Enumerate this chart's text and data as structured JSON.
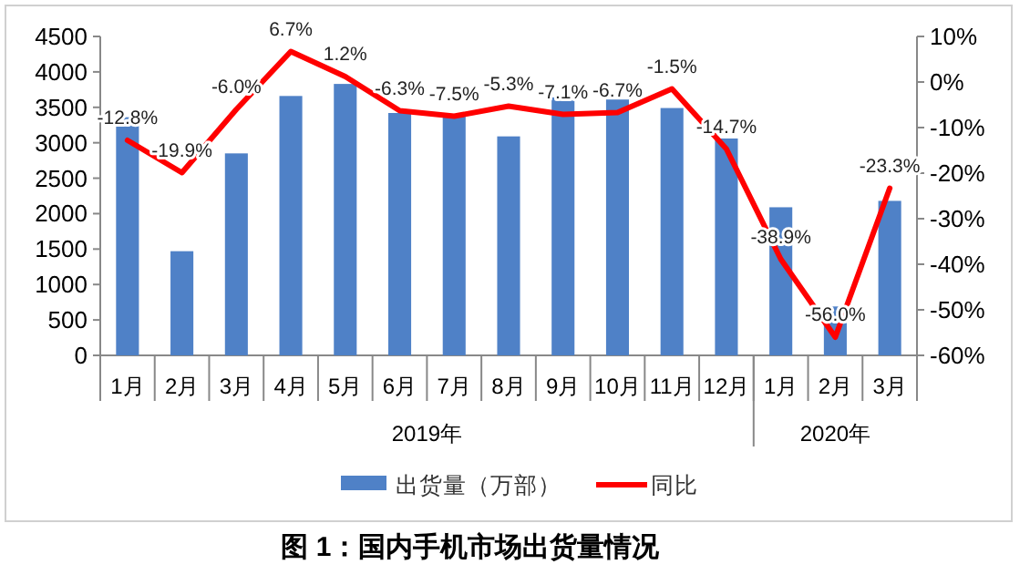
{
  "chart_data": {
    "type": "bar",
    "title": "图 1：国内手机市场出货量情况",
    "categories": [
      "1月",
      "2月",
      "3月",
      "4月",
      "5月",
      "6月",
      "7月",
      "8月",
      "9月",
      "10月",
      "11月",
      "12月",
      "1月",
      "2月",
      "3月"
    ],
    "series": [
      {
        "name": "出货量（万部）",
        "color": "#4f81c7",
        "values": [
          3360,
          1470,
          2850,
          3660,
          3830,
          3420,
          3400,
          3090,
          3640,
          3610,
          3490,
          3060,
          2090,
          690,
          2180
        ]
      },
      {
        "name": "同比",
        "type": "line",
        "axis": "y2",
        "color": "#ff0000",
        "values": [
          -12.8,
          -19.9,
          -6.0,
          6.7,
          1.2,
          -6.3,
          -7.5,
          -5.3,
          -7.1,
          -6.7,
          -1.5,
          -14.7,
          -38.9,
          -56.0,
          -23.3
        ],
        "value_labels": [
          "-12.8%",
          "-19.9%",
          "-6.0%",
          "6.7%",
          "1.2%",
          "-6.3%",
          "-7.5%",
          "-5.3%",
          "-7.1%",
          "-6.7%",
          "-1.5%",
          "-14.7%",
          "-38.9%",
          "-56.0%",
          "-23.3%"
        ]
      }
    ],
    "ylim": [
      0,
      4500
    ],
    "yticks": [
      0,
      500,
      1000,
      1500,
      2000,
      2500,
      3000,
      3500,
      4000,
      4500
    ],
    "y2lim": [
      -60,
      10
    ],
    "y2ticks": [
      {
        "value": -60,
        "label": "-60%"
      },
      {
        "value": -50,
        "label": "-50%"
      },
      {
        "value": -40,
        "label": "-40%"
      },
      {
        "value": -30,
        "label": "-30%"
      },
      {
        "value": -20,
        "label": "-20%"
      },
      {
        "value": -10,
        "label": "-10%"
      },
      {
        "value": 0,
        "label": "0%"
      },
      {
        "value": 10,
        "label": "10%"
      }
    ],
    "annotations": [
      "2019年",
      "2020年"
    ],
    "legend": "bottom",
    "grid": false
  }
}
